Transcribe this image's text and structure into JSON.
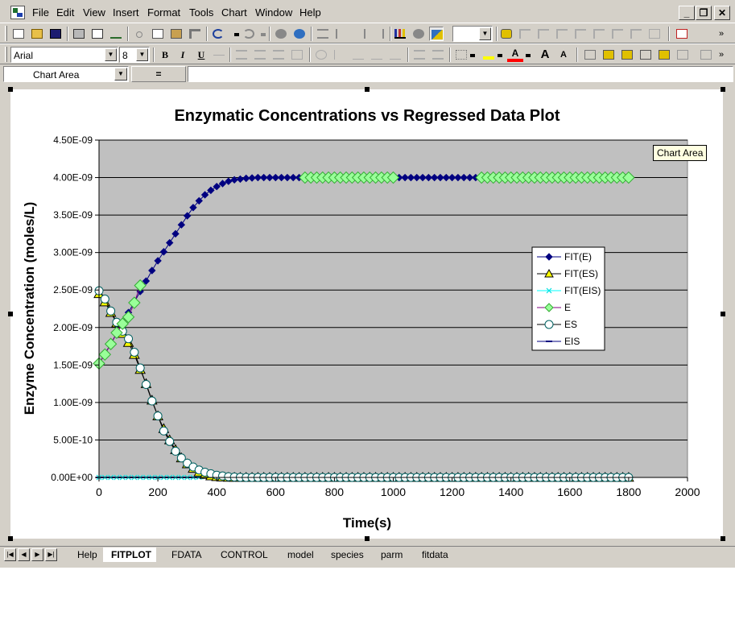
{
  "menu": [
    "File",
    "Edit",
    "View",
    "Insert",
    "Format",
    "Tools",
    "Chart",
    "Window",
    "Help"
  ],
  "window_controls": {
    "minimize": "_",
    "restore": "❐",
    "close": "✕"
  },
  "format_bar": {
    "font": "Arial",
    "size": "8",
    "bold": "B",
    "italic": "I",
    "underline": "U"
  },
  "name_box": {
    "value": "Chart Area",
    "equals": "="
  },
  "tooltip": "Chart Area",
  "sheet_tabs": [
    "Help",
    "FITPLOT",
    "FDATA",
    "CONTROL",
    "model",
    "species",
    "parm",
    "fitdata"
  ],
  "active_tab": "FITPLOT",
  "colors": {
    "plot_bg": "#c0c0c0",
    "fit_e": "#000080",
    "es_fit": "#ffff00",
    "eis_fit": "#00ffff",
    "e_data": "#99ff99",
    "e_line": "#800080"
  },
  "chart_data": {
    "type": "line",
    "title": "Enzymatic Concentrations vs Regressed Data Plot",
    "xlabel": "Time(s)",
    "ylabel": "Enzyme Concentration (moles/L)",
    "xlim": [
      0,
      2000
    ],
    "ylim": [
      0,
      4.5e-09
    ],
    "x_ticks": [
      "0",
      "200",
      "400",
      "600",
      "800",
      "1000",
      "1200",
      "1400",
      "1600",
      "1800",
      "2000"
    ],
    "y_ticks": [
      "0.00E+00",
      "5.00E-10",
      "1.00E-09",
      "1.50E-09",
      "2.00E-09",
      "2.50E-09",
      "3.00E-09",
      "3.50E-09",
      "4.00E-09",
      "4.50E-09"
    ],
    "grid": "horizontal",
    "legend_position": "right",
    "legend": [
      "FIT(E)",
      "FIT(ES)",
      "FIT(EIS)",
      "E",
      "ES",
      "EIS"
    ],
    "series": [
      {
        "name": "FIT(E)",
        "marker": "diamond",
        "x_step": 20,
        "x_end": 1800,
        "values": [
          1.52e-09,
          1.65e-09,
          1.78e-09,
          1.92e-09,
          2.06e-09,
          2.2e-09,
          2.34e-09,
          2.48e-09,
          2.62e-09,
          2.76e-09,
          2.89e-09,
          3.01e-09,
          3.13e-09,
          3.25e-09,
          3.37e-09,
          3.49e-09,
          3.6e-09,
          3.69e-09,
          3.77e-09,
          3.83e-09,
          3.88e-09,
          3.92e-09,
          3.95e-09,
          3.97e-09,
          3.98e-09,
          3.99e-09,
          3.995e-09,
          4e-09
        ]
      },
      {
        "name": "FIT(ES)",
        "marker": "triangle",
        "x_step": 20,
        "x_end": 1800,
        "values": [
          2.45e-09,
          2.34e-09,
          2.2e-09,
          2.06e-09,
          1.92e-09,
          1.8e-09,
          1.64e-09,
          1.44e-09,
          1.25e-09,
          1.03e-09,
          8.2e-10,
          6.5e-10,
          5e-10,
          3.7e-10,
          2.6e-10,
          1.8e-10,
          1.2e-10,
          7e-11,
          4e-11,
          2e-11,
          1e-11,
          5e-12,
          0
        ]
      },
      {
        "name": "FIT(EIS)",
        "marker": "x",
        "x_step": 20,
        "x_end": 1800,
        "values": [
          0,
          0,
          0,
          0,
          0,
          0,
          0,
          0,
          0,
          0,
          0,
          0,
          0,
          0,
          0,
          0,
          0,
          5e-12,
          1e-11,
          1e-11,
          1e-11,
          5e-12,
          0
        ]
      },
      {
        "name": "E",
        "marker": "diamond",
        "x_step": 20,
        "x_end": 1800,
        "values": [
          1.52e-09,
          1.64e-09,
          1.78e-09,
          1.93e-09,
          2.05e-09,
          2.14e-09,
          2.33e-09,
          2.56e-09
        ],
        "hidden_from": 8,
        "reappear_x": [
          700,
          720,
          740,
          760,
          780,
          800,
          820,
          840,
          860,
          880,
          900,
          920,
          940,
          960,
          980,
          1000,
          1300,
          1320,
          1340,
          1360,
          1380,
          1400,
          1420,
          1440,
          1460,
          1480,
          1500,
          1520,
          1540,
          1560,
          1580,
          1600,
          1620,
          1640,
          1660,
          1680,
          1700,
          1720,
          1740,
          1760,
          1780,
          1800
        ],
        "reappear_value": 4e-09
      },
      {
        "name": "ES",
        "marker": "circle",
        "x_step": 20,
        "x_end": 1800,
        "values": [
          2.49e-09,
          2.38e-09,
          2.22e-09,
          2.07e-09,
          1.95e-09,
          1.85e-09,
          1.67e-09,
          1.46e-09,
          1.24e-09,
          1.02e-09,
          8.2e-10,
          6.2e-10,
          4.8e-10,
          3.5e-10,
          2.6e-10,
          1.9e-10,
          1.4e-10,
          1e-10,
          7e-11,
          5e-11,
          3e-11,
          2e-11,
          1e-11,
          5e-12,
          2e-12,
          0
        ]
      },
      {
        "name": "EIS",
        "marker": "dash",
        "x_step": 20,
        "x_end": 1800,
        "values": [
          0
        ]
      }
    ]
  }
}
